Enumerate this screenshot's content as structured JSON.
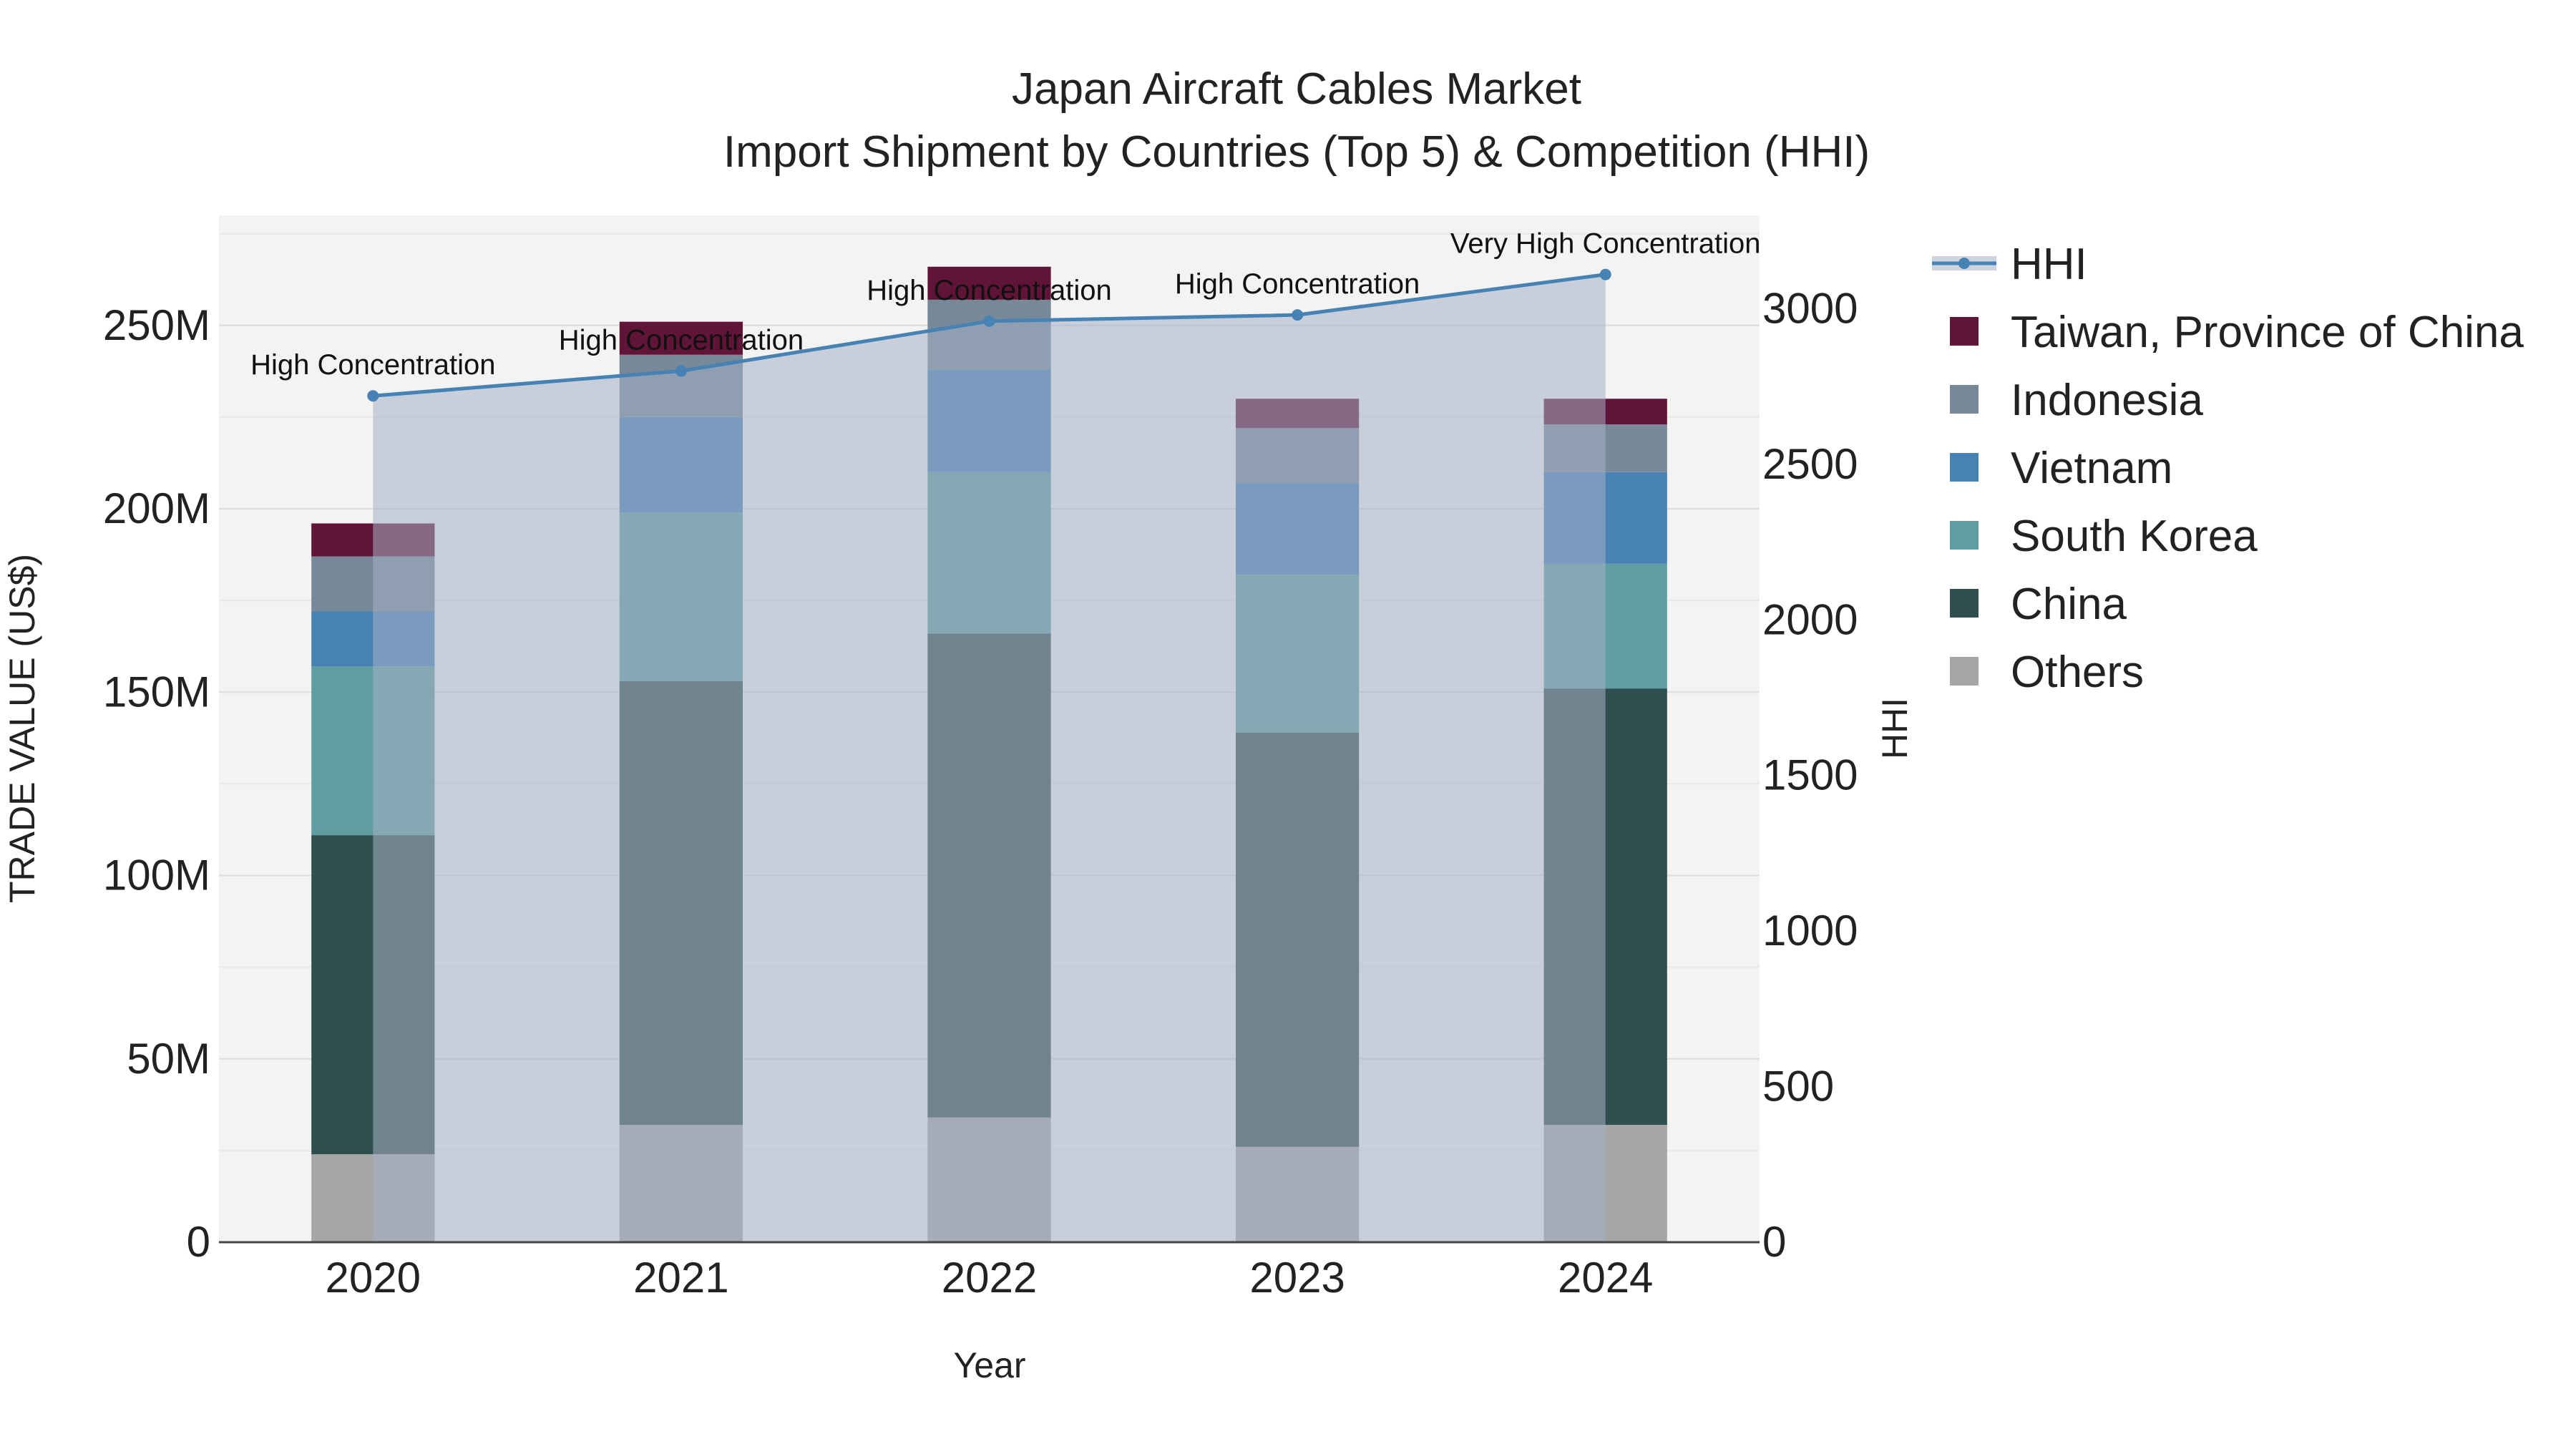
{
  "chart_data": {
    "type": "bar",
    "stacked": true,
    "title": "Japan Aircraft Cables Market",
    "subtitle": "Import Shipment by Countries (Top 5) & Competition (HHI)",
    "xlabel": "Year",
    "ylabel": "TRADE VALUE (US$)",
    "y2label": "HHI",
    "categories": [
      "2020",
      "2021",
      "2022",
      "2023",
      "2024"
    ],
    "ylim": [
      0,
      280000000
    ],
    "y2lim": [
      0,
      3300
    ],
    "yticks": [
      {
        "value": 0,
        "label": "0"
      },
      {
        "value": 50000000,
        "label": "50M"
      },
      {
        "value": 100000000,
        "label": "100M"
      },
      {
        "value": 150000000,
        "label": "150M"
      },
      {
        "value": 200000000,
        "label": "200M"
      },
      {
        "value": 250000000,
        "label": "250M"
      }
    ],
    "y2ticks": [
      {
        "value": 0,
        "label": "0"
      },
      {
        "value": 500,
        "label": "500"
      },
      {
        "value": 1000,
        "label": "1000"
      },
      {
        "value": 1500,
        "label": "1500"
      },
      {
        "value": 2000,
        "label": "2000"
      },
      {
        "value": 2500,
        "label": "2500"
      },
      {
        "value": 3000,
        "label": "3000"
      }
    ],
    "series": [
      {
        "name": "Others",
        "color": "#a6a6a6",
        "values": [
          24000000,
          32000000,
          34000000,
          26000000,
          32000000
        ]
      },
      {
        "name": "China",
        "color": "#2f4f4f",
        "values": [
          87000000,
          121000000,
          132000000,
          113000000,
          119000000
        ]
      },
      {
        "name": "South Korea",
        "color": "#5f9ea0",
        "values": [
          46000000,
          46000000,
          44000000,
          43000000,
          34000000
        ]
      },
      {
        "name": "Vietnam",
        "color": "#4682b4",
        "values": [
          15000000,
          26000000,
          28000000,
          25000000,
          25000000
        ]
      },
      {
        "name": "Indonesia",
        "color": "#778899",
        "values": [
          15000000,
          17000000,
          19000000,
          15000000,
          13000000
        ]
      },
      {
        "name": "Taiwan, Province of China",
        "color": "#601438",
        "values": [
          9000000,
          9000000,
          9000000,
          8000000,
          7000000
        ]
      }
    ],
    "hhi": {
      "name": "HHI",
      "color": "#4682b4",
      "values": [
        2720,
        2800,
        2960,
        2980,
        3110
      ],
      "labels": [
        "High Concentration",
        "High Concentration",
        "High Concentration",
        "High Concentration",
        "Very High Concentration"
      ]
    },
    "legend": {
      "position": "right",
      "order": [
        "HHI",
        "Taiwan, Province of China",
        "Indonesia",
        "Vietnam",
        "South Korea",
        "China",
        "Others"
      ]
    }
  }
}
